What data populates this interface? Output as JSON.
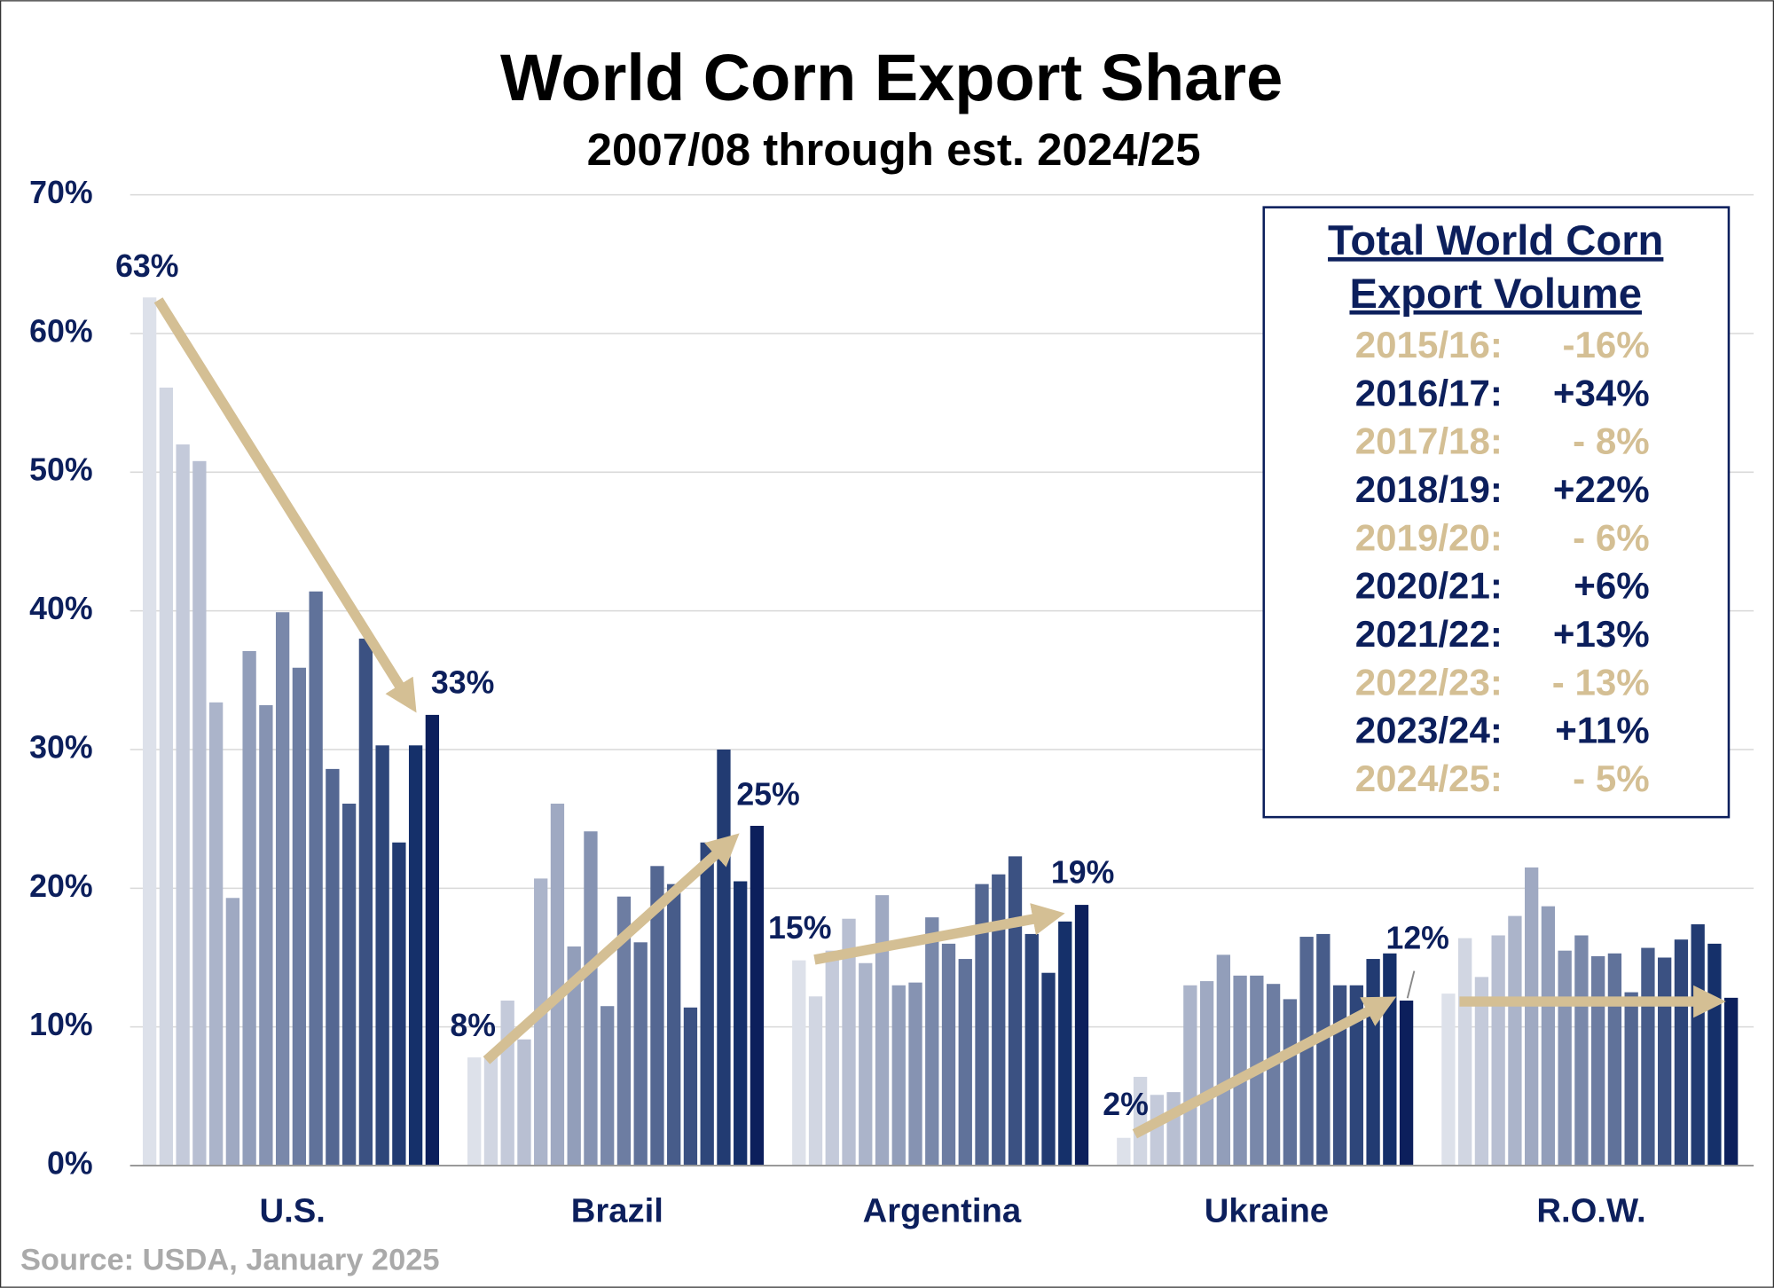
{
  "chart_data": {
    "type": "bar",
    "title": "World Corn Export Share",
    "subtitle": "2007/08 through est. 2024/25",
    "categories": [
      "U.S.",
      "Brazil",
      "Argentina",
      "Ukraine",
      "R.O.W."
    ],
    "series": [
      {
        "color": "#dde1ea",
        "values": [
          62.6,
          7.8,
          14.8,
          2.0,
          12.4
        ]
      },
      {
        "color": "#d1d6e2",
        "values": [
          56.1,
          7.8,
          12.2,
          6.4,
          16.4
        ]
      },
      {
        "color": "#c4cada",
        "values": [
          52.0,
          11.9,
          15.5,
          5.1,
          13.6
        ]
      },
      {
        "color": "#b8bfd2",
        "values": [
          50.8,
          9.1,
          17.8,
          5.3,
          16.6
        ]
      },
      {
        "color": "#abb4ca",
        "values": [
          33.4,
          20.7,
          14.6,
          13.0,
          18.0
        ]
      },
      {
        "color": "#9fa9c2",
        "values": [
          19.3,
          26.1,
          19.5,
          13.3,
          21.5
        ]
      },
      {
        "color": "#929eba",
        "values": [
          37.1,
          15.8,
          13.0,
          15.2,
          18.7
        ]
      },
      {
        "color": "#8693b2",
        "values": [
          33.2,
          24.1,
          13.2,
          13.7,
          15.5
        ]
      },
      {
        "color": "#7988aa",
        "values": [
          39.9,
          11.5,
          17.9,
          13.7,
          16.6
        ]
      },
      {
        "color": "#6d7da2",
        "values": [
          35.9,
          19.4,
          16.0,
          13.1,
          15.1
        ]
      },
      {
        "color": "#60729a",
        "values": [
          41.4,
          16.1,
          14.9,
          12.0,
          15.3
        ]
      },
      {
        "color": "#546792",
        "values": [
          28.6,
          21.6,
          20.3,
          16.5,
          12.5
        ]
      },
      {
        "color": "#475c8a",
        "values": [
          26.1,
          20.3,
          21.0,
          16.7,
          15.7
        ]
      },
      {
        "color": "#3b5182",
        "values": [
          38.0,
          11.4,
          22.3,
          13.0,
          15.0
        ]
      },
      {
        "color": "#2e467a",
        "values": [
          30.3,
          23.3,
          16.7,
          13.0,
          16.3
        ]
      },
      {
        "color": "#223b72",
        "values": [
          23.3,
          30.0,
          13.9,
          14.9,
          17.4
        ]
      },
      {
        "color": "#15306a",
        "values": [
          30.3,
          20.5,
          17.6,
          15.3,
          16.0
        ]
      },
      {
        "color": "#0c1f5c",
        "values": [
          32.5,
          24.5,
          18.8,
          11.9,
          12.1
        ]
      }
    ],
    "ylim": [
      0,
      70
    ],
    "yticks": [
      {
        "value": 0,
        "label": "0%"
      },
      {
        "value": 10,
        "label": "10%"
      },
      {
        "value": 20,
        "label": "20%"
      },
      {
        "value": 30,
        "label": "30%"
      },
      {
        "value": 40,
        "label": "40%"
      },
      {
        "value": 50,
        "label": "50%"
      },
      {
        "value": 60,
        "label": "60%"
      },
      {
        "value": 70,
        "label": "70%"
      }
    ],
    "grid": true,
    "annotations": [
      "63%",
      "33%",
      "8%",
      "25%",
      "15%",
      "19%",
      "2%",
      "12%"
    ],
    "box": {
      "title": [
        "Total World Corn",
        "Export Volume"
      ],
      "rows": [
        {
          "year": "2015/16:",
          "change": "-16%",
          "color": "#d4bf94"
        },
        {
          "year": "2016/17:",
          "change": "+34%",
          "color": "#0c1f5c"
        },
        {
          "year": "2017/18:",
          "change": "- 8%",
          "color": "#d4bf94"
        },
        {
          "year": "2018/19:",
          "change": "+22%",
          "color": "#0c1f5c"
        },
        {
          "year": "2019/20:",
          "change": "- 6%",
          "color": "#d4bf94"
        },
        {
          "year": "2020/21:",
          "change": "+6%",
          "color": "#0c1f5c"
        },
        {
          "year": "2021/22:",
          "change": "+13%",
          "color": "#0c1f5c"
        },
        {
          "year": "2022/23:",
          "change": "- 13%",
          "color": "#d4bf94"
        },
        {
          "year": "2023/24:",
          "change": "+11%",
          "color": "#0c1f5c"
        },
        {
          "year": "2024/25:",
          "change": "- 5%",
          "color": "#d4bf94"
        }
      ]
    },
    "source": "Source: USDA, January 2025"
  }
}
